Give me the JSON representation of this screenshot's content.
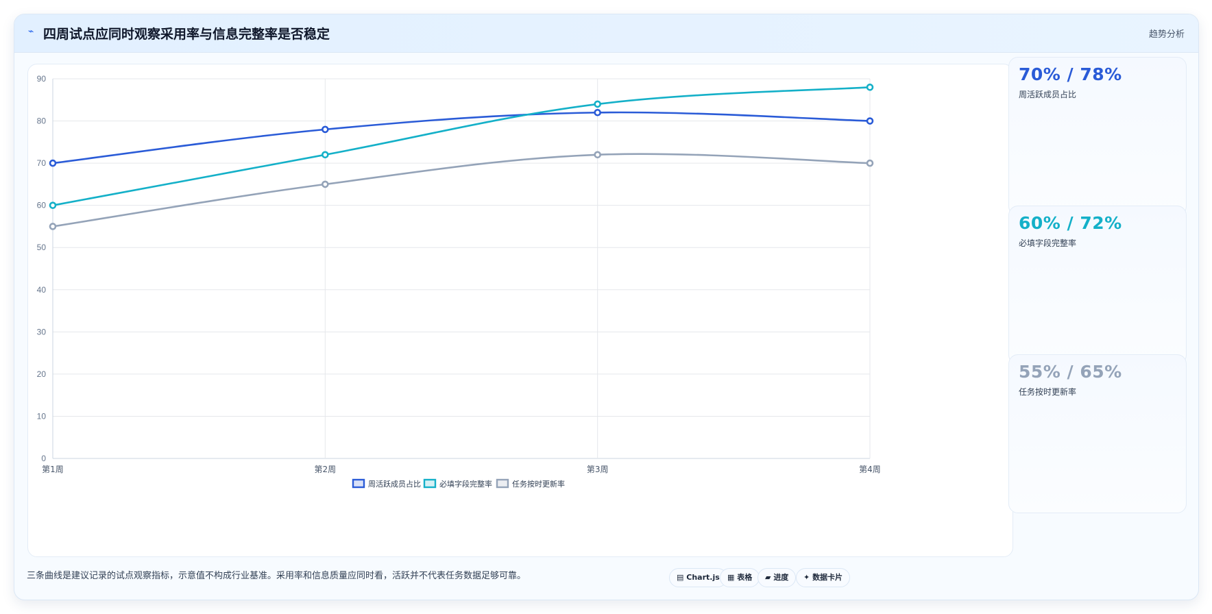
{
  "header": {
    "title_icon": "⌁",
    "title": "四周试点应同时观察采用率与信息完整率是否稳定",
    "tag": "趋势分析"
  },
  "chart_data": {
    "type": "line",
    "categories": [
      "第1周",
      "第2周",
      "第3周",
      "第4周"
    ],
    "ylim": [
      0,
      90
    ],
    "yticks": [
      0,
      10,
      20,
      30,
      40,
      50,
      60,
      70,
      80,
      90
    ],
    "grid": true,
    "legend_position": "bottom",
    "series": [
      {
        "name": "周活跃成员占比",
        "color": "#2a5bd7",
        "values": [
          70,
          78,
          82,
          80
        ]
      },
      {
        "name": "必填字段完整率",
        "color": "#14b0c8",
        "values": [
          60,
          72,
          84,
          88
        ]
      },
      {
        "name": "任务按时更新率",
        "color": "#94a3b8",
        "values": [
          55,
          65,
          72,
          70
        ]
      }
    ]
  },
  "kpis": [
    {
      "value": "70% / 78%",
      "label": "周活跃成员占比",
      "color": "#2a5bd7"
    },
    {
      "value": "60% / 72%",
      "label": "必填字段完整率",
      "color": "#14b0c8"
    },
    {
      "value": "55% / 65%",
      "label": "任务按时更新率",
      "color": "#94a3b8"
    }
  ],
  "footnote": "三条曲线是建议记录的试点观察指标，示意值不构成行业基准。采用率和信息质量应同时看，活跃并不代表任务数据足够可靠。",
  "chips": [
    {
      "icon": "chart-icon",
      "glyph": "▤",
      "label": "Chart.js"
    },
    {
      "icon": "table-icon",
      "glyph": "▦",
      "label": "表格"
    },
    {
      "icon": "progress-icon",
      "glyph": "▰",
      "label": "进度"
    },
    {
      "icon": "sparkle-icon",
      "glyph": "✦",
      "label": "数据卡片"
    }
  ]
}
